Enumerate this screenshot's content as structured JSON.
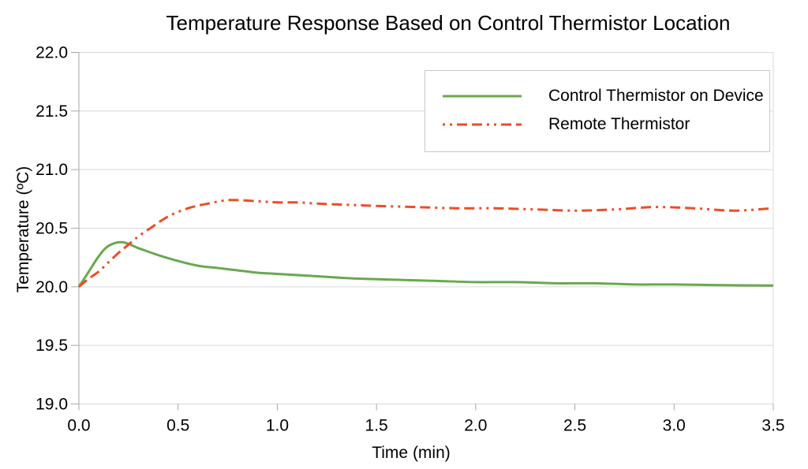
{
  "chart_data": {
    "type": "line",
    "title": "Temperature Response Based on Control Thermistor Location",
    "xlabel": "Time (min)",
    "ylabel": "Temperature (ºC)",
    "xlim": [
      0.0,
      3.5
    ],
    "ylim": [
      19.0,
      22.0
    ],
    "x_ticks": [
      "0.0",
      "0.5",
      "1.0",
      "1.5",
      "2.0",
      "2.5",
      "3.0",
      "3.5"
    ],
    "y_ticks": [
      "19.0",
      "19.5",
      "20.0",
      "20.5",
      "21.0",
      "21.5",
      "22.0"
    ],
    "grid": "horizontal-only",
    "legend_position": "top-right-inside",
    "colors": {
      "gridline": "#d9d9d9",
      "axis": "#a6a6a6",
      "text": "#000000",
      "legend_border": "#c9c9c9"
    },
    "series": [
      {
        "name": "Control Thermistor on Device",
        "color": "#6aa84f",
        "style": "solid",
        "points": [
          [
            0.0,
            20.0
          ],
          [
            0.05,
            20.13
          ],
          [
            0.1,
            20.26
          ],
          [
            0.15,
            20.35
          ],
          [
            0.22,
            20.38
          ],
          [
            0.3,
            20.33
          ],
          [
            0.4,
            20.27
          ],
          [
            0.5,
            20.22
          ],
          [
            0.6,
            20.18
          ],
          [
            0.7,
            20.16
          ],
          [
            0.8,
            20.14
          ],
          [
            0.9,
            20.12
          ],
          [
            1.0,
            20.11
          ],
          [
            1.2,
            20.09
          ],
          [
            1.4,
            20.07
          ],
          [
            1.6,
            20.06
          ],
          [
            1.8,
            20.05
          ],
          [
            2.0,
            20.04
          ],
          [
            2.2,
            20.04
          ],
          [
            2.4,
            20.03
          ],
          [
            2.6,
            20.03
          ],
          [
            2.8,
            20.02
          ],
          [
            3.0,
            20.02
          ],
          [
            3.2,
            20.015
          ],
          [
            3.5,
            20.01
          ]
        ]
      },
      {
        "name": "Remote Thermistor",
        "color": "#ee4c28",
        "style": "dash-dot-dot",
        "points": [
          [
            0.0,
            20.0
          ],
          [
            0.05,
            20.07
          ],
          [
            0.1,
            20.13
          ],
          [
            0.15,
            20.21
          ],
          [
            0.2,
            20.29
          ],
          [
            0.25,
            20.36
          ],
          [
            0.3,
            20.43
          ],
          [
            0.36,
            20.5
          ],
          [
            0.45,
            20.6
          ],
          [
            0.55,
            20.67
          ],
          [
            0.65,
            20.71
          ],
          [
            0.76,
            20.74
          ],
          [
            0.9,
            20.73
          ],
          [
            1.0,
            20.72
          ],
          [
            1.1,
            20.72
          ],
          [
            1.2,
            20.71
          ],
          [
            1.35,
            20.7
          ],
          [
            1.5,
            20.69
          ],
          [
            1.7,
            20.68
          ],
          [
            1.9,
            20.67
          ],
          [
            2.1,
            20.67
          ],
          [
            2.3,
            20.66
          ],
          [
            2.5,
            20.65
          ],
          [
            2.7,
            20.66
          ],
          [
            2.9,
            20.68
          ],
          [
            3.1,
            20.67
          ],
          [
            3.3,
            20.65
          ],
          [
            3.5,
            20.67
          ]
        ]
      }
    ]
  }
}
